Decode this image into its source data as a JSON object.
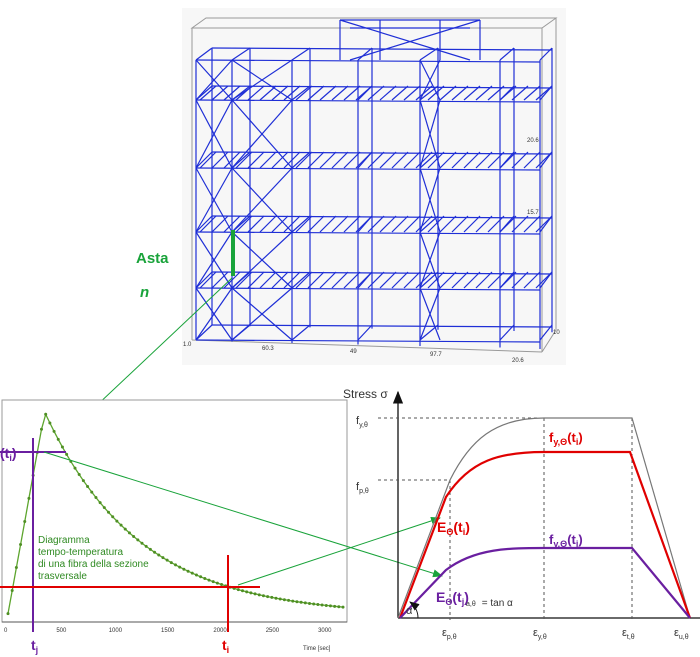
{
  "frame": {
    "asta_label": "Asta",
    "n_label": "n",
    "axis_ticks": [
      "1.0",
      "60.3",
      "49",
      "97.7",
      "20.6",
      "10"
    ],
    "side_ticks": [
      "20.6",
      "15.7"
    ]
  },
  "time_temp": {
    "caption_lines": [
      "Diagramma",
      "tempo-temperatura",
      "di una fibra della sezione",
      "trasversale"
    ],
    "ti_top_label": "(t",
    "ti_top_sub": "i",
    "ti_top_close": ")",
    "tj_label": "t",
    "tj_sub": "j",
    "ti_label": "t",
    "ti_sub": "i",
    "x_axis_label": "Time [sec]",
    "x_ticks": [
      "0",
      "500",
      "1000",
      "1500",
      "2000",
      "2500",
      "3000"
    ]
  },
  "stress_strain": {
    "y_axis_label": "Stress σ",
    "fy_theta": {
      "base": "f",
      "sub": "y,θ"
    },
    "fp_theta": {
      "base": "f",
      "sub": "p,θ"
    },
    "fy_ti": {
      "base": "f",
      "sub": "y,Θ",
      "arg": "(t",
      "argsub": "i",
      "close": ")"
    },
    "fy_tj": {
      "base": "f",
      "sub": "y,Θ",
      "arg": "(t",
      "argsub": "j",
      "close": ")"
    },
    "E_ti": {
      "base": "E",
      "sub": "Θ",
      "arg": "(t",
      "argsub": "i",
      "close": ")"
    },
    "E_tj": {
      "base": "E",
      "sub": "Θ",
      "arg": "(t",
      "argsub": "j",
      "close": ")"
    },
    "tan_text": "= tan α",
    "tan_sub": "a,θ",
    "alpha": "α",
    "eps_p": {
      "base": "ε",
      "sub": "p,θ"
    },
    "eps_y": {
      "base": "ε",
      "sub": "y,θ"
    },
    "eps_t": {
      "base": "ε",
      "sub": "t,θ"
    },
    "eps_u": {
      "base": "ε",
      "sub": "u,θ"
    }
  },
  "colors": {
    "frame_blue": "#1f2fd6",
    "green": "#19a33a",
    "curve_green": "#5da52e",
    "red": "#e00000",
    "purple": "#6a1fa0"
  }
}
